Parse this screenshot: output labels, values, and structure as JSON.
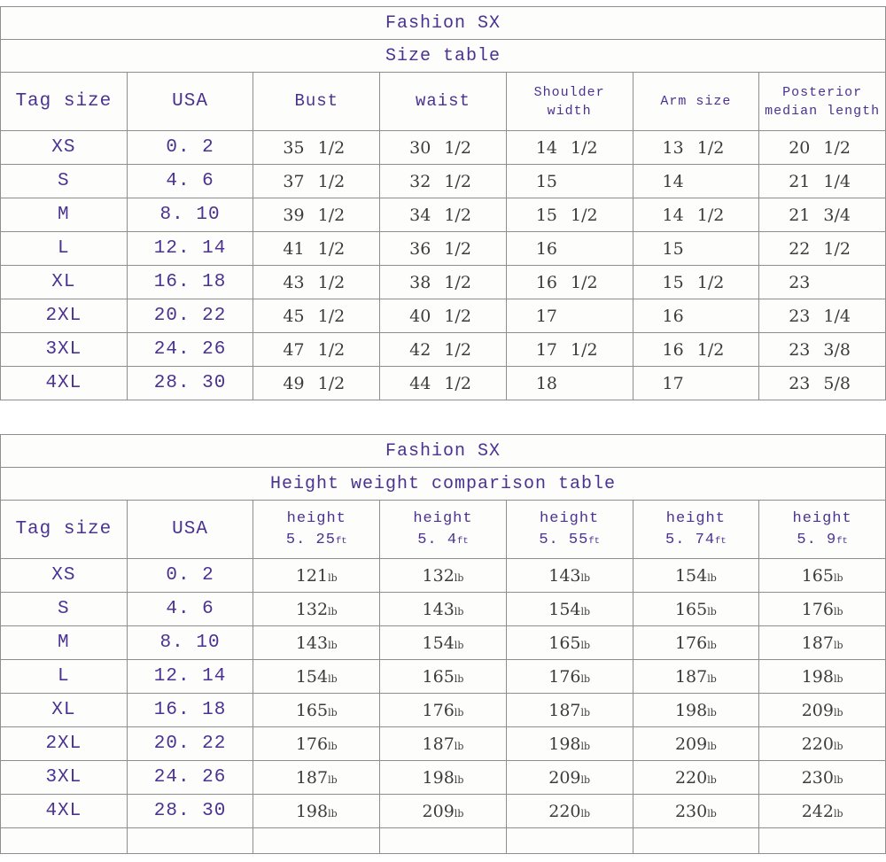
{
  "colors": {
    "text_purple": "#4b3292",
    "text_dark": "#3c3c3c",
    "grid_border": "#8e8e8e"
  },
  "table1": {
    "title": "Fashion SX",
    "subtitle": "Size table",
    "columns": [
      {
        "text": "Tag size"
      },
      {
        "text": "USA"
      },
      {
        "text": "Bust"
      },
      {
        "text": "waist"
      },
      {
        "text": "Shoulder\nwidth"
      },
      {
        "text": "Arm size"
      },
      {
        "text": "Posterior\nmedian length"
      }
    ],
    "rows": [
      [
        "XS",
        "0. 2",
        "35 1/2",
        "30 1/2",
        "14 1/2",
        "13 1/2",
        "20 1/2"
      ],
      [
        "S",
        "4. 6",
        "37 1/2",
        "32 1/2",
        "15",
        "14",
        "21 1/4"
      ],
      [
        "M",
        "8. 10",
        "39 1/2",
        "34 1/2",
        "15 1/2",
        "14 1/2",
        "21 3/4"
      ],
      [
        "L",
        "12. 14",
        "41 1/2",
        "36 1/2",
        "16",
        "15",
        "22 1/2"
      ],
      [
        "XL",
        "16. 18",
        "43 1/2",
        "38 1/2",
        "16 1/2",
        "15 1/2",
        "23"
      ],
      [
        "2XL",
        "20. 22",
        "45 1/2",
        "40 1/2",
        "17",
        "16",
        "23 1/4"
      ],
      [
        "3XL",
        "24. 26",
        "47 1/2",
        "42 1/2",
        "17 1/2",
        "16 1/2",
        "23 3/8"
      ],
      [
        "4XL",
        "28. 30",
        "49 1/2",
        "44 1/2",
        "18",
        "17",
        "23 5/8"
      ]
    ]
  },
  "table2": {
    "title": "Fashion SX",
    "subtitle": "Height weight comparison table",
    "columns": [
      {
        "text": "Tag size"
      },
      {
        "text": "USA"
      },
      {
        "text": "height",
        "sub": "5. 25",
        "unit": "ft"
      },
      {
        "text": "height",
        "sub": "5. 4",
        "unit": "ft"
      },
      {
        "text": "height",
        "sub": "5. 55",
        "unit": "ft"
      },
      {
        "text": "height",
        "sub": "5. 74",
        "unit": "ft"
      },
      {
        "text": "height",
        "sub": "5. 9",
        "unit": "ft"
      }
    ],
    "rows": [
      [
        "XS",
        "0. 2",
        "121lb",
        "132lb",
        "143lb",
        "154lb",
        "165lb"
      ],
      [
        "S",
        "4. 6",
        "132lb",
        "143lb",
        "154lb",
        "165lb",
        "176lb"
      ],
      [
        "M",
        "8. 10",
        "143lb",
        "154lb",
        "165lb",
        "176lb",
        "187lb"
      ],
      [
        "L",
        "12. 14",
        "154lb",
        "165lb",
        "176lb",
        "187lb",
        "198lb"
      ],
      [
        "XL",
        "16. 18",
        "165lb",
        "176lb",
        "187lb",
        "198lb",
        "209lb"
      ],
      [
        "2XL",
        "20. 22",
        "176lb",
        "187lb",
        "198lb",
        "209lb",
        "220lb"
      ],
      [
        "3XL",
        "24. 26",
        "187lb",
        "198lb",
        "209lb",
        "220lb",
        "230lb"
      ],
      [
        "4XL",
        "28. 30",
        "198lb",
        "209lb",
        "220lb",
        "230lb",
        "242lb"
      ]
    ],
    "trailing_empty_row": true
  }
}
